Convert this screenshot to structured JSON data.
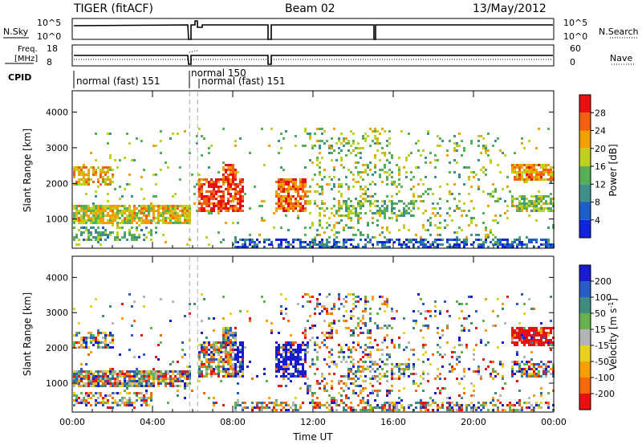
{
  "header": {
    "station": "TIGER (fitACF)",
    "beam": "Beam 02",
    "date": "13/May/2012"
  },
  "strips": {
    "nsky_label": "N.Sky",
    "nsearch_label": "N.Search",
    "freq_label_line1": "Freq.",
    "freq_label_line2": "[MHz]",
    "nave_label": "Nave",
    "cpid_label": "CPID",
    "nsky_ticks": [
      "10^5",
      "10^0"
    ],
    "nsearch_ticks": [
      "10^5",
      "10^0"
    ],
    "freq_ticks": [
      "18",
      "8"
    ],
    "nave_ticks": [
      "60",
      "0"
    ],
    "cpid_segments": [
      {
        "start": "00:00",
        "label": "normal (fast) 151"
      },
      {
        "start": "05:50",
        "label": "normal 150"
      },
      {
        "start": "06:20",
        "label": "normal (fast) 151"
      }
    ]
  },
  "chart_data": [
    {
      "type": "heatmap",
      "panel": "power",
      "ylabel": "Slant Range [km]",
      "ylim": [
        180,
        4600
      ],
      "yticks": [
        "1000",
        "2000",
        "3000",
        "4000"
      ],
      "xlim": [
        "00:00",
        "24:00"
      ],
      "colorbar": {
        "label": "Power [dB]",
        "ticks": [
          "4",
          "8",
          "12",
          "16",
          "20",
          "24",
          "28"
        ],
        "colors": [
          "#1024e0",
          "#1d5fc8",
          "#3f8f8a",
          "#56b056",
          "#c0d020",
          "#f0a000",
          "#f56010",
          "#e81010"
        ]
      }
    },
    {
      "type": "heatmap",
      "panel": "velocity",
      "ylabel": "Slant Range [km]",
      "ylim": [
        180,
        4600
      ],
      "yticks": [
        "1000",
        "2000",
        "3000",
        "4000"
      ],
      "xlim": [
        "00:00",
        "24:00"
      ],
      "colorbar": {
        "label": "Velocity [m s",
        "label_sup": "-1",
        "label_end": "]",
        "ticks": [
          "200",
          "100",
          "50",
          "15",
          "-15",
          "-50",
          "-100",
          "-200"
        ],
        "colors": [
          "#1a1ad0",
          "#2a5cc8",
          "#3e8c7e",
          "#66b050",
          "#b4b4b4",
          "#e8d020",
          "#f5a000",
          "#f56810",
          "#e81010"
        ]
      }
    }
  ],
  "xaxis": {
    "label": "Time UT",
    "ticks": [
      "00:00",
      "04:00",
      "08:00",
      "12:00",
      "16:00",
      "20:00",
      "00:00"
    ]
  }
}
